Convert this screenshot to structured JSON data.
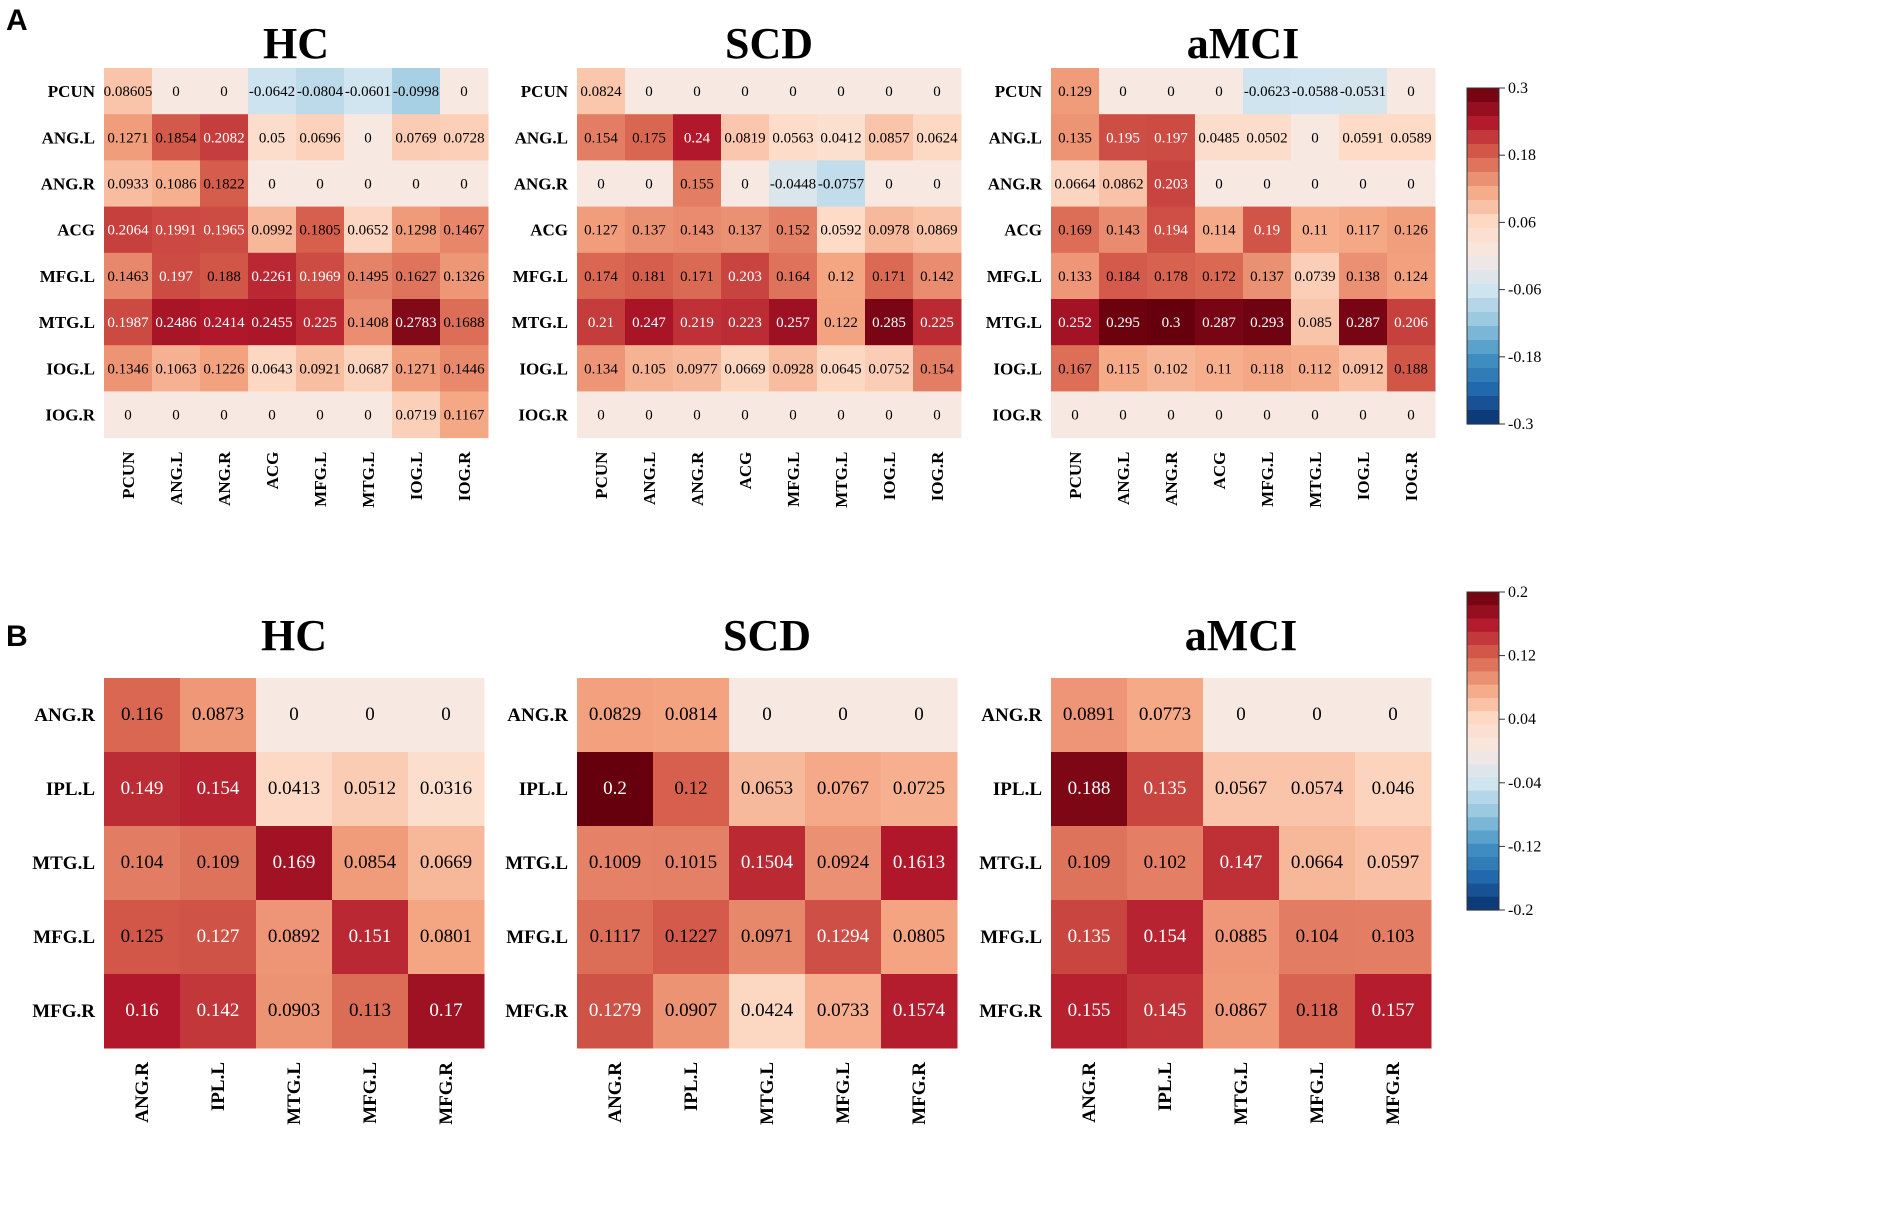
{
  "panels": [
    {
      "letter": "A"
    },
    {
      "letter": "B"
    }
  ],
  "chart_data": [
    {
      "type": "heatmap",
      "panel": "A",
      "title": "HC",
      "rows": [
        "PCUN",
        "ANG.L",
        "ANG.R",
        "ACG",
        "MFG.L",
        "MTG.L",
        "IOG.L",
        "IOG.R"
      ],
      "columns": [
        "PCUN",
        "ANG.L",
        "ANG.R",
        "ACG",
        "MFG.L",
        "MTG.L",
        "IOG.L",
        "IOG.R"
      ],
      "values": [
        [
          "0.08605",
          "0",
          "0",
          "-0.0642",
          "-0.0804",
          "-0.0601",
          "-0.0998",
          "0"
        ],
        [
          "0.1271",
          "0.1854",
          "0.2082",
          "0.05",
          "0.0696",
          "0",
          "0.0769",
          "0.0728"
        ],
        [
          "0.0933",
          "0.1086",
          "0.1822",
          "0",
          "0",
          "0",
          "0",
          "0"
        ],
        [
          "0.2064",
          "0.1991",
          "0.1965",
          "0.0992",
          "0.1805",
          "0.0652",
          "0.1298",
          "0.1467"
        ],
        [
          "0.1463",
          "0.197",
          "0.188",
          "0.2261",
          "0.1969",
          "0.1495",
          "0.1627",
          "0.1326"
        ],
        [
          "0.1987",
          "0.2486",
          "0.2414",
          "0.2455",
          "0.225",
          "0.1408",
          "0.2783",
          "0.1688"
        ],
        [
          "0.1346",
          "0.1063",
          "0.1226",
          "0.0643",
          "0.0921",
          "0.0687",
          "0.1271",
          "0.1446"
        ],
        [
          "0",
          "0",
          "0",
          "0",
          "0",
          "0",
          "0.0719",
          "0.1167"
        ]
      ],
      "colorbar_range": [
        -0.3,
        0.3
      ]
    },
    {
      "type": "heatmap",
      "panel": "A",
      "title": "SCD",
      "rows": [
        "PCUN",
        "ANG.L",
        "ANG.R",
        "ACG",
        "MFG.L",
        "MTG.L",
        "IOG.L",
        "IOG.R"
      ],
      "columns": [
        "PCUN",
        "ANG.L",
        "ANG.R",
        "ACG",
        "MFG.L",
        "MTG.L",
        "IOG.L",
        "IOG.R"
      ],
      "values": [
        [
          "0.0824",
          "0",
          "0",
          "0",
          "0",
          "0",
          "0",
          "0"
        ],
        [
          "0.154",
          "0.175",
          "0.24",
          "0.0819",
          "0.0563",
          "0.0412",
          "0.0857",
          "0.0624"
        ],
        [
          "0",
          "0",
          "0.155",
          "0",
          "-0.0448",
          "-0.0757",
          "0",
          "0"
        ],
        [
          "0.127",
          "0.137",
          "0.143",
          "0.137",
          "0.152",
          "0.0592",
          "0.0978",
          "0.0869"
        ],
        [
          "0.174",
          "0.181",
          "0.171",
          "0.203",
          "0.164",
          "0.12",
          "0.171",
          "0.142"
        ],
        [
          "0.21",
          "0.247",
          "0.219",
          "0.223",
          "0.257",
          "0.122",
          "0.285",
          "0.225"
        ],
        [
          "0.134",
          "0.105",
          "0.0977",
          "0.0669",
          "0.0928",
          "0.0645",
          "0.0752",
          "0.154"
        ],
        [
          "0",
          "0",
          "0",
          "0",
          "0",
          "0",
          "0",
          "0"
        ]
      ],
      "colorbar_range": [
        -0.3,
        0.3
      ]
    },
    {
      "type": "heatmap",
      "panel": "A",
      "title": "aMCI",
      "rows": [
        "PCUN",
        "ANG.L",
        "ANG.R",
        "ACG",
        "MFG.L",
        "MTG.L",
        "IOG.L",
        "IOG.R"
      ],
      "columns": [
        "PCUN",
        "ANG.L",
        "ANG.R",
        "ACG",
        "MFG.L",
        "MTG.L",
        "IOG.L",
        "IOG.R"
      ],
      "values": [
        [
          "0.129",
          "0",
          "0",
          "0",
          "-0.0623",
          "-0.0588",
          "-0.0531",
          "0"
        ],
        [
          "0.135",
          "0.195",
          "0.197",
          "0.0485",
          "0.0502",
          "0",
          "0.0591",
          "0.0589"
        ],
        [
          "0.0664",
          "0.0862",
          "0.203",
          "0",
          "0",
          "0",
          "0",
          "0"
        ],
        [
          "0.169",
          "0.143",
          "0.194",
          "0.114",
          "0.19",
          "0.11",
          "0.117",
          "0.126"
        ],
        [
          "0.133",
          "0.184",
          "0.178",
          "0.172",
          "0.137",
          "0.0739",
          "0.138",
          "0.124"
        ],
        [
          "0.252",
          "0.295",
          "0.3",
          "0.287",
          "0.293",
          "0.085",
          "0.287",
          "0.206"
        ],
        [
          "0.167",
          "0.115",
          "0.102",
          "0.11",
          "0.118",
          "0.112",
          "0.0912",
          "0.188"
        ],
        [
          "0",
          "0",
          "0",
          "0",
          "0",
          "0",
          "0",
          "0"
        ]
      ],
      "colorbar_range": [
        -0.3,
        0.3
      ]
    },
    {
      "type": "heatmap",
      "panel": "B",
      "title": "HC",
      "rows": [
        "ANG.R",
        "IPL.L",
        "MTG.L",
        "MFG.L",
        "MFG.R"
      ],
      "columns": [
        "ANG.R",
        "IPL.L",
        "MTG.L",
        "MFG.L",
        "MFG.R"
      ],
      "values": [
        [
          "0.116",
          "0.0873",
          "0",
          "0",
          "0"
        ],
        [
          "0.149",
          "0.154",
          "0.0413",
          "0.0512",
          "0.0316"
        ],
        [
          "0.104",
          "0.109",
          "0.169",
          "0.0854",
          "0.0669"
        ],
        [
          "0.125",
          "0.127",
          "0.0892",
          "0.151",
          "0.0801"
        ],
        [
          "0.16",
          "0.142",
          "0.0903",
          "0.113",
          "0.17"
        ]
      ],
      "colorbar_range": [
        -0.2,
        0.2
      ]
    },
    {
      "type": "heatmap",
      "panel": "B",
      "title": "SCD",
      "rows": [
        "ANG.R",
        "IPL.L",
        "MTG.L",
        "MFG.L",
        "MFG.R"
      ],
      "columns": [
        "ANG.R",
        "IPL.L",
        "MTG.L",
        "MFG.L",
        "MFG.R"
      ],
      "values": [
        [
          "0.0829",
          "0.0814",
          "0",
          "0",
          "0"
        ],
        [
          "0.2",
          "0.12",
          "0.0653",
          "0.0767",
          "0.0725"
        ],
        [
          "0.1009",
          "0.1015",
          "0.1504",
          "0.0924",
          "0.1613"
        ],
        [
          "0.1117",
          "0.1227",
          "0.0971",
          "0.1294",
          "0.0805"
        ],
        [
          "0.1279",
          "0.0907",
          "0.0424",
          "0.0733",
          "0.1574"
        ]
      ],
      "colorbar_range": [
        -0.2,
        0.2
      ]
    },
    {
      "type": "heatmap",
      "panel": "B",
      "title": "aMCI",
      "rows": [
        "ANG.R",
        "IPL.L",
        "MTG.L",
        "MFG.L",
        "MFG.R"
      ],
      "columns": [
        "ANG.R",
        "IPL.L",
        "MTG.L",
        "MFG.L",
        "MFG.R"
      ],
      "values": [
        [
          "0.0891",
          "0.0773",
          "0",
          "0",
          "0"
        ],
        [
          "0.188",
          "0.135",
          "0.0567",
          "0.0574",
          "0.046"
        ],
        [
          "0.109",
          "0.102",
          "0.147",
          "0.0664",
          "0.0597"
        ],
        [
          "0.135",
          "0.154",
          "0.0885",
          "0.104",
          "0.103"
        ],
        [
          "0.155",
          "0.145",
          "0.0867",
          "0.118",
          "0.157"
        ]
      ],
      "colorbar_range": [
        -0.2,
        0.2
      ]
    }
  ],
  "colorbars": [
    {
      "panel": "A",
      "range": [
        -0.3,
        0.3
      ],
      "ticks": [
        "0.3",
        "0.18",
        "0.06",
        "-0.06",
        "-0.18",
        "-0.3"
      ]
    },
    {
      "panel": "B",
      "range": [
        -0.2,
        0.2
      ],
      "ticks": [
        "0.2",
        "0.12",
        "0.04",
        "-0.04",
        "-0.12",
        "-0.2"
      ]
    }
  ],
  "colormap": {
    "name": "RdBu_r",
    "stops": [
      "#08306b",
      "#2166ac",
      "#4393c3",
      "#92c5de",
      "#d1e5f0",
      "#f7e8e2",
      "#fddbc7",
      "#f4a582",
      "#d6604d",
      "#b2182b",
      "#67000d"
    ]
  }
}
